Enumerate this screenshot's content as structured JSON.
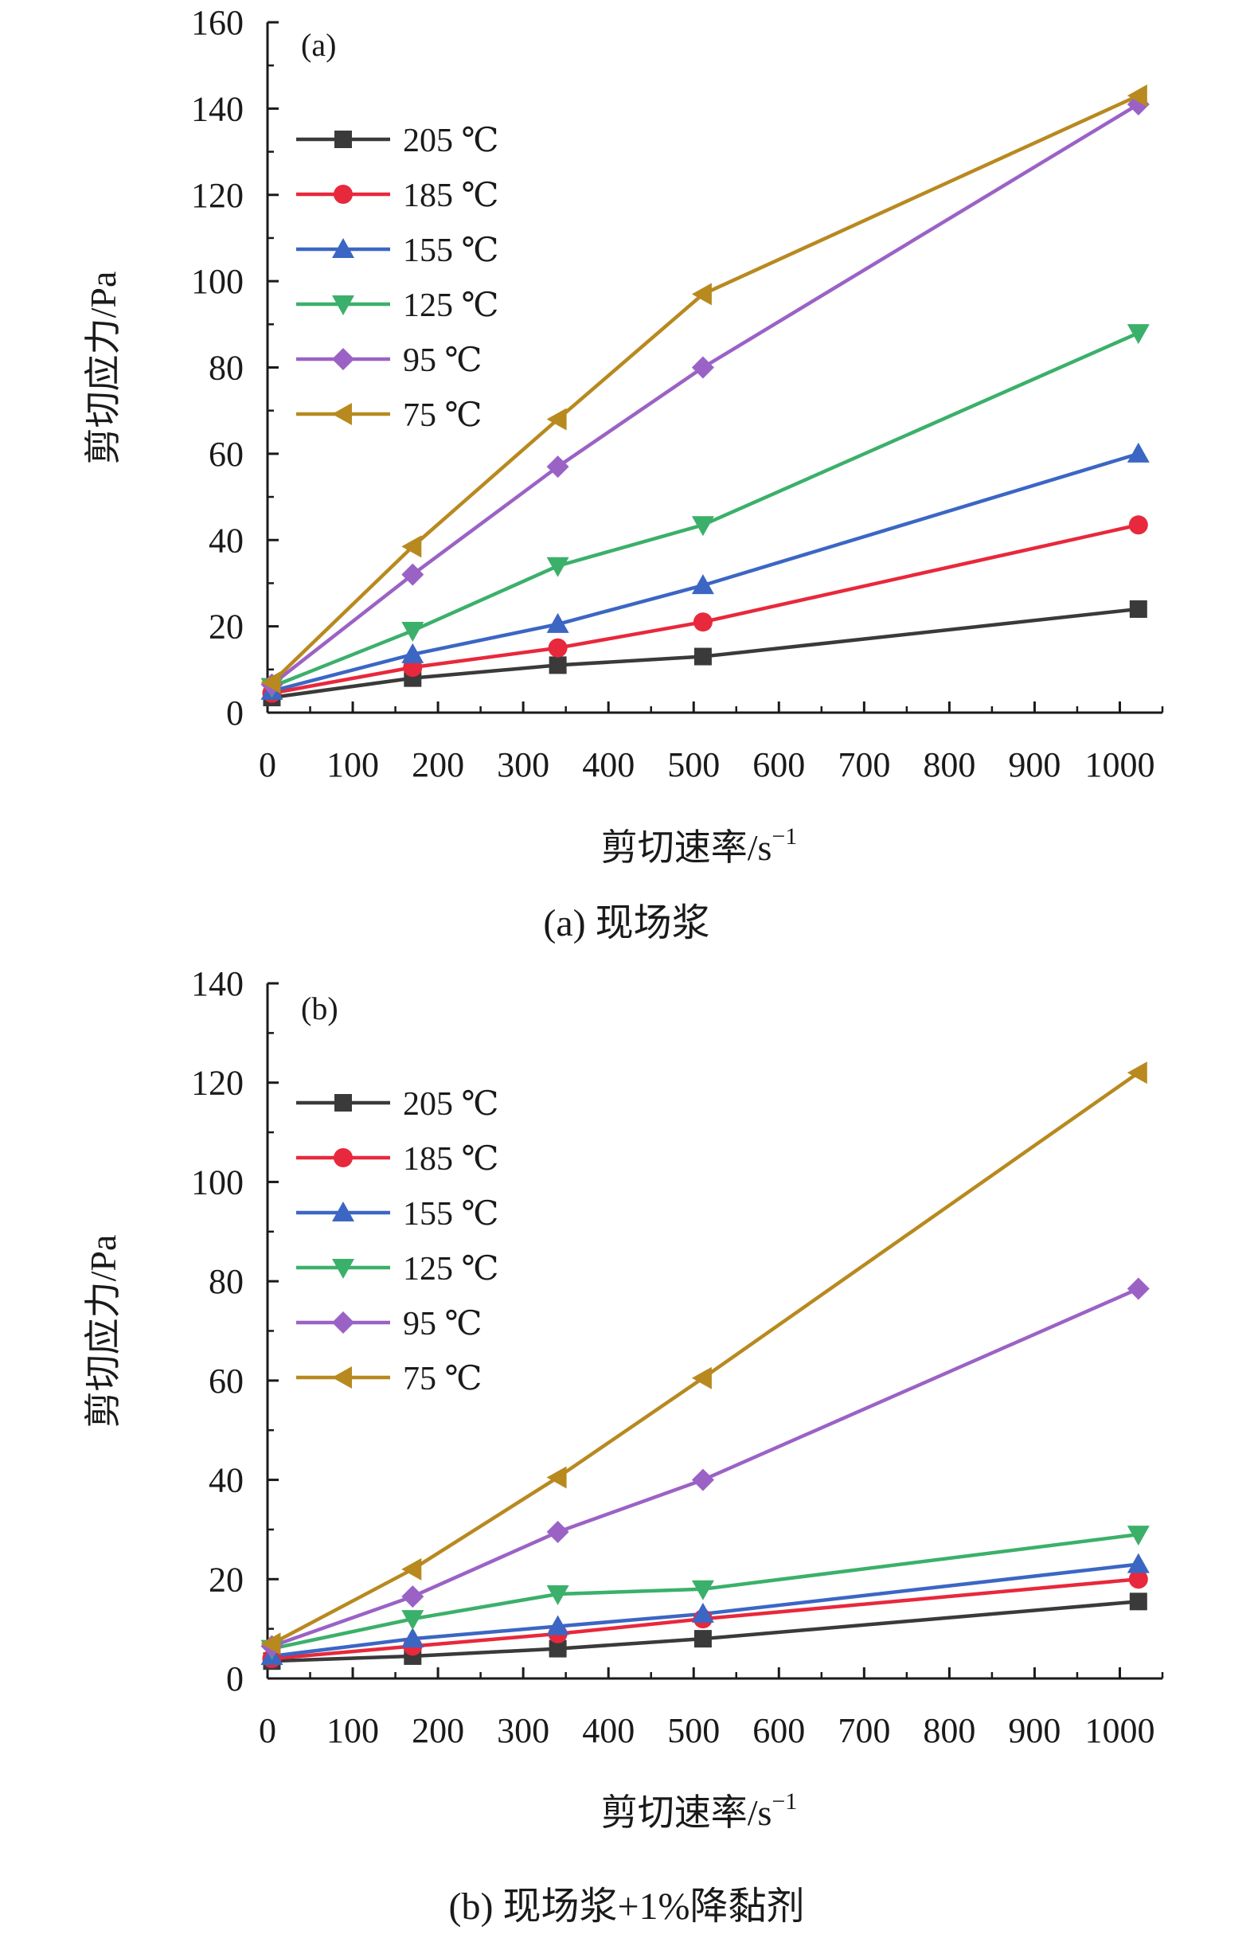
{
  "chart_data": [
    {
      "type": "line",
      "panel_label": "(a)",
      "caption": "(a) 现场浆",
      "xlabel": "剪切速率/s",
      "xlabel_exp": "−1",
      "ylabel": "剪切应力/Pa",
      "xlim": [
        0,
        1050
      ],
      "ylim": [
        0,
        160
      ],
      "xticks": [
        0,
        100,
        200,
        300,
        400,
        500,
        600,
        700,
        800,
        900,
        1000
      ],
      "yticks": [
        0,
        20,
        40,
        60,
        80,
        100,
        120,
        140,
        160
      ],
      "grid": false,
      "legend_position": "top-left",
      "x": [
        5.1,
        170.3,
        340.6,
        510.9,
        1021.8
      ],
      "series": [
        {
          "name": "205 ℃",
          "color": "#3a3a3a",
          "marker": "square",
          "values": [
            3.5,
            8,
            11,
            13,
            24
          ]
        },
        {
          "name": "185 ℃",
          "color": "#e8283c",
          "marker": "circle",
          "values": [
            4.5,
            10.5,
            15,
            21,
            43.5
          ]
        },
        {
          "name": "155 ℃",
          "color": "#3b66c4",
          "marker": "triangle-up",
          "values": [
            5,
            13.5,
            20.5,
            29.5,
            60
          ]
        },
        {
          "name": "125 ℃",
          "color": "#3bb06a",
          "marker": "triangle-down",
          "values": [
            6,
            19,
            34,
            43.5,
            88
          ]
        },
        {
          "name": "95 ℃",
          "color": "#9b62c6",
          "marker": "diamond",
          "values": [
            6.5,
            32,
            57,
            80,
            141
          ]
        },
        {
          "name": "75 ℃",
          "color": "#b8891f",
          "marker": "triangle-left",
          "values": [
            7,
            38.5,
            68,
            97,
            143
          ]
        }
      ]
    },
    {
      "type": "line",
      "panel_label": "(b)",
      "caption": "(b) 现场浆+1%降黏剂",
      "xlabel": "剪切速率/s",
      "xlabel_exp": "−1",
      "ylabel": "剪切应力/Pa",
      "xlim": [
        0,
        1050
      ],
      "ylim": [
        0,
        140
      ],
      "xticks": [
        0,
        100,
        200,
        300,
        400,
        500,
        600,
        700,
        800,
        900,
        1000
      ],
      "yticks": [
        0,
        20,
        40,
        60,
        80,
        100,
        120,
        140
      ],
      "grid": false,
      "legend_position": "top-left",
      "x": [
        5.1,
        170.3,
        340.6,
        510.9,
        1021.8
      ],
      "series": [
        {
          "name": "205 ℃",
          "color": "#3a3a3a",
          "marker": "square",
          "values": [
            3.5,
            4.5,
            6,
            8,
            15.5
          ]
        },
        {
          "name": "185 ℃",
          "color": "#e8283c",
          "marker": "circle",
          "values": [
            4,
            6.5,
            9,
            12,
            20
          ]
        },
        {
          "name": "155 ℃",
          "color": "#3b66c4",
          "marker": "triangle-up",
          "values": [
            4.5,
            8,
            10.5,
            13,
            23
          ]
        },
        {
          "name": "125 ℃",
          "color": "#3bb06a",
          "marker": "triangle-down",
          "values": [
            6,
            12,
            17,
            18,
            29
          ]
        },
        {
          "name": "95 ℃",
          "color": "#9b62c6",
          "marker": "diamond",
          "values": [
            6.5,
            16.5,
            29.5,
            40,
            78.5
          ]
        },
        {
          "name": "75 ℃",
          "color": "#b8891f",
          "marker": "triangle-left",
          "values": [
            7,
            22,
            40.5,
            60.5,
            122
          ]
        }
      ]
    }
  ]
}
